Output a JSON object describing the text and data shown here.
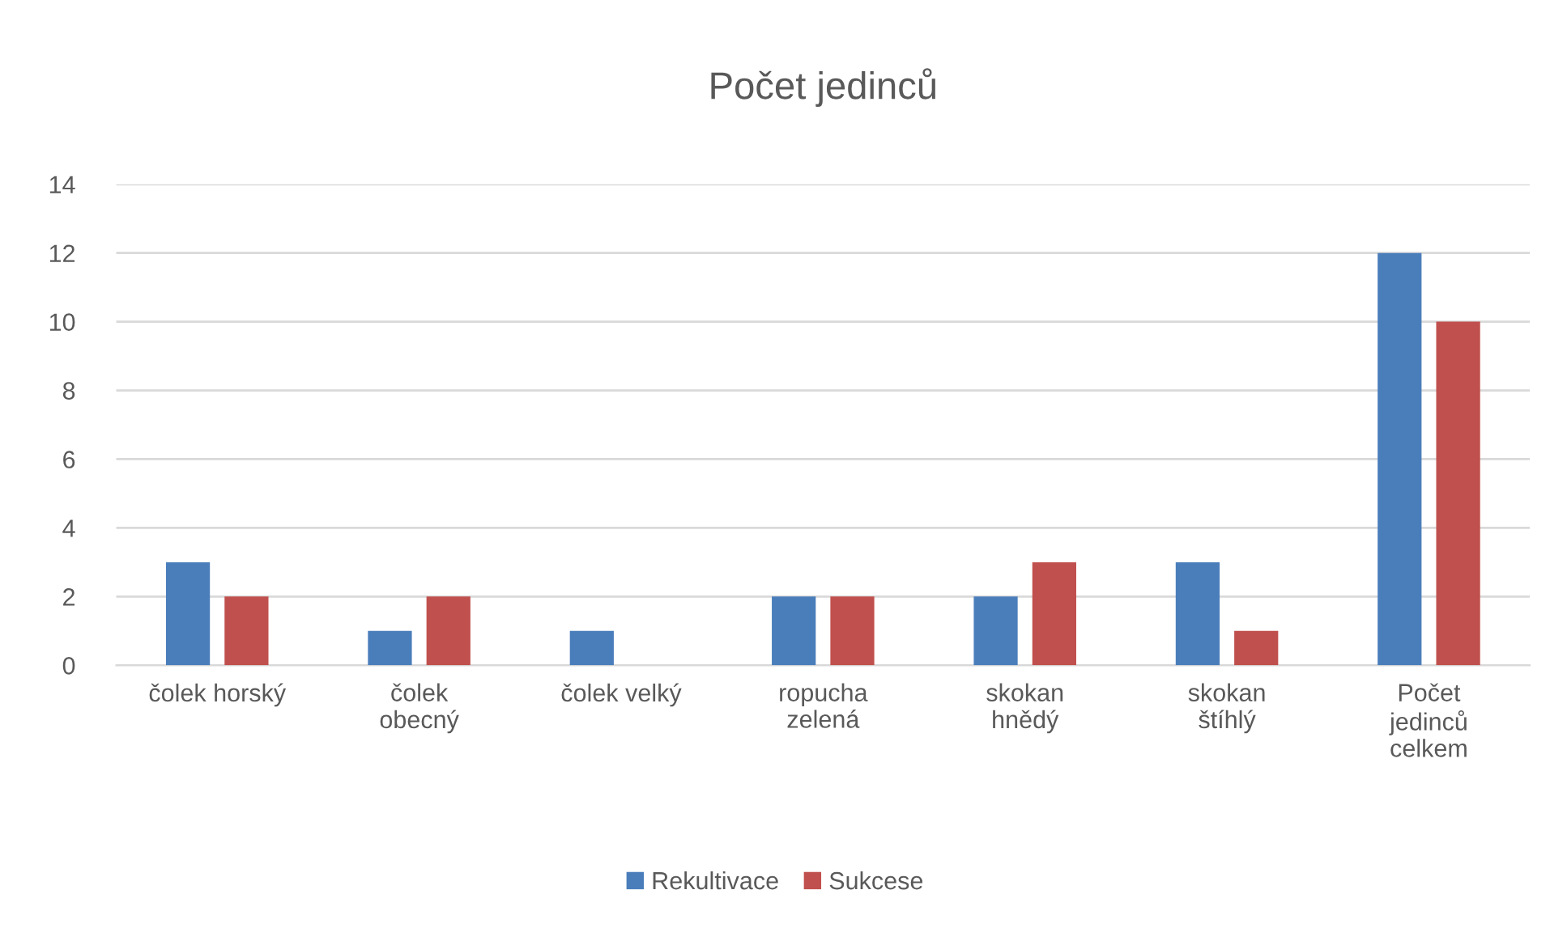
{
  "chart_data": {
    "type": "bar",
    "title": "Počet jedinců",
    "categories": [
      "čolek horský",
      "čolek\nobecný",
      "čolek velký",
      "ropucha\nzelená",
      "skokan\nhnědý",
      "skokan\nštíhlý",
      "Počet\njedinců\ncelkem"
    ],
    "series": [
      {
        "name": "Rekultivace",
        "color": "#4a7ebb",
        "values": [
          3,
          1,
          1,
          2,
          2,
          3,
          12
        ]
      },
      {
        "name": "Sukcese",
        "color": "#c0504d",
        "values": [
          2,
          2,
          0,
          2,
          3,
          1,
          10
        ]
      }
    ],
    "ylim": [
      0,
      14
    ],
    "yticks": [
      0,
      2,
      4,
      6,
      8,
      10,
      12,
      14
    ],
    "grid": "y",
    "legend": "bottom"
  }
}
